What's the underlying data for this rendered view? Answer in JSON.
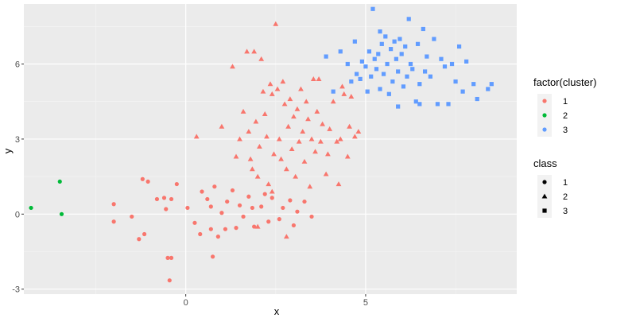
{
  "chart_data": {
    "type": "scatter",
    "title": "",
    "xlabel": "x",
    "ylabel": "y",
    "xlim": [
      -4.5,
      9.2
    ],
    "ylim": [
      -3.2,
      8.4
    ],
    "x_ticks": [
      0,
      5
    ],
    "x_tick_labels": [
      "0",
      "5"
    ],
    "y_ticks": [
      -3,
      0,
      3,
      6
    ],
    "y_tick_labels": [
      "-3",
      "0",
      "3",
      "6"
    ],
    "grid": true,
    "background": "#ebebeb",
    "legend_position": "right",
    "color_legend": {
      "title": "factor(cluster)",
      "entries": [
        {
          "label": "1",
          "color": "#f8766d"
        },
        {
          "label": "2",
          "color": "#00ba38"
        },
        {
          "label": "3",
          "color": "#619cff"
        }
      ]
    },
    "shape_legend": {
      "title": "class",
      "entries": [
        {
          "label": "1",
          "shape": "circle"
        },
        {
          "label": "2",
          "shape": "triangle"
        },
        {
          "label": "3",
          "shape": "square"
        }
      ]
    },
    "series": [
      {
        "name": "1",
        "color": "#f8766d",
        "shape": "circle",
        "points": [
          [
            -2.0,
            0.4
          ],
          [
            -2.0,
            -0.3
          ],
          [
            -1.5,
            -0.1
          ],
          [
            -1.3,
            -1.0
          ],
          [
            -1.15,
            -0.8
          ],
          [
            -1.2,
            1.4
          ],
          [
            -1.05,
            1.3
          ],
          [
            -0.8,
            0.6
          ],
          [
            -0.6,
            0.65
          ],
          [
            -0.55,
            0.2
          ],
          [
            -0.4,
            0.6
          ],
          [
            -0.25,
            1.2
          ],
          [
            -0.5,
            -1.75
          ],
          [
            -0.4,
            -1.75
          ],
          [
            -0.45,
            -2.65
          ],
          [
            0.05,
            0.25
          ],
          [
            0.25,
            -0.35
          ],
          [
            0.4,
            -0.8
          ],
          [
            0.45,
            0.9
          ],
          [
            0.6,
            0.6
          ],
          [
            0.7,
            0.3
          ],
          [
            0.7,
            -0.6
          ],
          [
            0.75,
            -1.7
          ],
          [
            0.8,
            1.1
          ],
          [
            0.9,
            -0.9
          ],
          [
            1.0,
            0.05
          ],
          [
            1.1,
            -0.6
          ],
          [
            1.15,
            0.5
          ],
          [
            1.3,
            0.95
          ],
          [
            1.4,
            -0.55
          ],
          [
            1.5,
            0.35
          ],
          [
            1.6,
            -0.1
          ],
          [
            1.75,
            0.7
          ],
          [
            1.85,
            0.25
          ],
          [
            1.9,
            -0.5
          ],
          [
            2.1,
            0.3
          ],
          [
            2.2,
            0.8
          ],
          [
            2.3,
            -0.3
          ],
          [
            2.4,
            0.65
          ],
          [
            2.6,
            -0.2
          ],
          [
            2.7,
            0.25
          ],
          [
            2.9,
            0.55
          ],
          [
            3.0,
            -0.45
          ],
          [
            3.1,
            0.1
          ],
          [
            3.3,
            0.5
          ],
          [
            3.5,
            -0.1
          ]
        ]
      },
      {
        "name": "1",
        "color": "#f8766d",
        "shape": "triangle",
        "points": [
          [
            0.3,
            3.1
          ],
          [
            1.0,
            3.5
          ],
          [
            1.3,
            5.9
          ],
          [
            1.4,
            2.3
          ],
          [
            1.5,
            3.0
          ],
          [
            1.6,
            4.1
          ],
          [
            1.7,
            6.5
          ],
          [
            1.75,
            3.3
          ],
          [
            1.8,
            2.2
          ],
          [
            1.85,
            1.8
          ],
          [
            1.9,
            6.5
          ],
          [
            1.95,
            3.7
          ],
          [
            2.0,
            1.5
          ],
          [
            2.05,
            2.7
          ],
          [
            2.1,
            6.2
          ],
          [
            2.15,
            4.9
          ],
          [
            2.2,
            4.0
          ],
          [
            2.25,
            3.1
          ],
          [
            2.3,
            1.2
          ],
          [
            2.35,
            5.2
          ],
          [
            2.4,
            4.8
          ],
          [
            2.45,
            2.4
          ],
          [
            2.5,
            7.6
          ],
          [
            2.55,
            5.0
          ],
          [
            2.6,
            3.0
          ],
          [
            2.65,
            2.2
          ],
          [
            2.7,
            5.3
          ],
          [
            2.75,
            4.4
          ],
          [
            2.8,
            1.8
          ],
          [
            2.85,
            3.5
          ],
          [
            2.9,
            4.6
          ],
          [
            2.95,
            2.6
          ],
          [
            3.0,
            3.9
          ],
          [
            3.05,
            1.5
          ],
          [
            3.1,
            4.2
          ],
          [
            3.15,
            2.9
          ],
          [
            3.2,
            5.0
          ],
          [
            3.25,
            3.3
          ],
          [
            3.3,
            2.1
          ],
          [
            3.35,
            4.5
          ],
          [
            3.4,
            3.8
          ],
          [
            3.45,
            1.1
          ],
          [
            3.5,
            3.0
          ],
          [
            3.55,
            5.4
          ],
          [
            3.6,
            2.5
          ],
          [
            3.65,
            4.1
          ],
          [
            3.7,
            5.4
          ],
          [
            3.75,
            2.9
          ],
          [
            3.8,
            3.6
          ],
          [
            3.9,
            1.6
          ],
          [
            3.95,
            2.4
          ],
          [
            4.0,
            3.4
          ],
          [
            4.1,
            4.5
          ],
          [
            4.2,
            2.9
          ],
          [
            4.25,
            1.2
          ],
          [
            4.3,
            3.0
          ],
          [
            4.35,
            5.1
          ],
          [
            4.4,
            4.8
          ],
          [
            4.5,
            2.3
          ],
          [
            4.55,
            3.5
          ],
          [
            4.6,
            4.7
          ],
          [
            4.7,
            3.1
          ],
          [
            4.8,
            3.3
          ],
          [
            2.4,
            0.9
          ],
          [
            2.0,
            -0.5
          ],
          [
            2.8,
            -0.9
          ]
        ]
      },
      {
        "name": "2",
        "color": "#00ba38",
        "shape": "circle",
        "points": [
          [
            -4.3,
            0.25
          ],
          [
            -3.5,
            1.3
          ],
          [
            -3.45,
            0.0
          ]
        ]
      },
      {
        "name": "3",
        "color": "#619cff",
        "shape": "square",
        "points": [
          [
            3.9,
            6.3
          ],
          [
            4.1,
            4.9
          ],
          [
            4.3,
            6.5
          ],
          [
            4.5,
            6.0
          ],
          [
            4.6,
            5.3
          ],
          [
            4.7,
            6.9
          ],
          [
            4.75,
            5.6
          ],
          [
            4.85,
            5.4
          ],
          [
            4.9,
            6.1
          ],
          [
            5.0,
            5.9
          ],
          [
            5.05,
            4.9
          ],
          [
            5.1,
            6.5
          ],
          [
            5.15,
            5.5
          ],
          [
            5.2,
            8.2
          ],
          [
            5.25,
            6.2
          ],
          [
            5.3,
            5.8
          ],
          [
            5.35,
            6.4
          ],
          [
            5.4,
            5.0
          ],
          [
            5.45,
            6.8
          ],
          [
            5.5,
            5.6
          ],
          [
            5.55,
            7.1
          ],
          [
            5.6,
            6.0
          ],
          [
            5.65,
            4.8
          ],
          [
            5.7,
            6.6
          ],
          [
            5.75,
            5.3
          ],
          [
            5.8,
            6.9
          ],
          [
            5.85,
            6.2
          ],
          [
            5.9,
            5.7
          ],
          [
            5.95,
            7.0
          ],
          [
            6.0,
            6.4
          ],
          [
            6.05,
            5.1
          ],
          [
            6.1,
            6.7
          ],
          [
            6.15,
            5.5
          ],
          [
            6.2,
            7.8
          ],
          [
            6.25,
            6.0
          ],
          [
            6.3,
            5.8
          ],
          [
            6.4,
            4.5
          ],
          [
            6.45,
            6.8
          ],
          [
            6.5,
            5.2
          ],
          [
            6.6,
            7.4
          ],
          [
            6.65,
            5.7
          ],
          [
            6.7,
            6.3
          ],
          [
            6.8,
            5.5
          ],
          [
            6.9,
            7.0
          ],
          [
            7.0,
            4.4
          ],
          [
            7.1,
            6.2
          ],
          [
            7.2,
            5.9
          ],
          [
            7.3,
            4.4
          ],
          [
            7.4,
            6.0
          ],
          [
            7.5,
            5.3
          ],
          [
            7.6,
            6.7
          ],
          [
            7.7,
            4.9
          ],
          [
            7.8,
            6.1
          ],
          [
            8.0,
            5.2
          ],
          [
            8.1,
            4.6
          ],
          [
            8.4,
            5.0
          ],
          [
            8.5,
            5.2
          ],
          [
            5.9,
            4.3
          ],
          [
            6.5,
            4.4
          ],
          [
            5.4,
            7.3
          ]
        ]
      }
    ]
  }
}
